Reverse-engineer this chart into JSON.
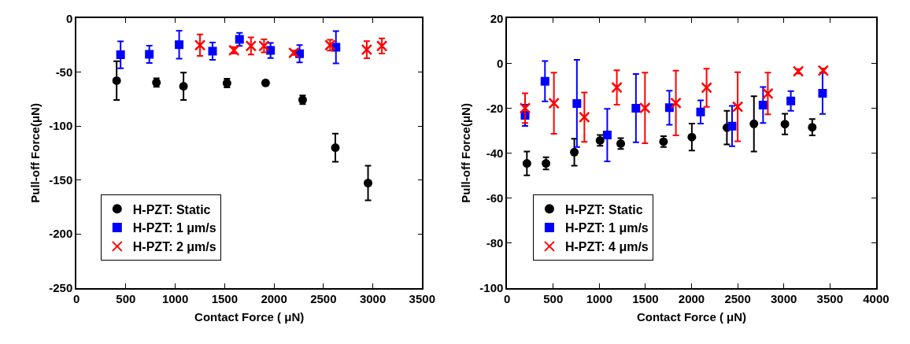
{
  "chart_data": [
    {
      "type": "scatter",
      "xlabel": "Contact Force ( μN)",
      "ylabel": "Pull-off Force(μN)",
      "xlim": [
        0,
        3500
      ],
      "xticks": [
        0,
        500,
        1000,
        1500,
        2000,
        2500,
        3000,
        3500
      ],
      "ylim": [
        -250,
        0
      ],
      "yticks": [
        -250,
        -200,
        -150,
        -100,
        -50,
        0
      ],
      "legend": "bottom left",
      "series": [
        {
          "name": "H-PZT: Static",
          "color": "#000000",
          "marker": "circle",
          "x": [
            407,
            810,
            1084,
            1524,
            1915,
            2290,
            2621,
            2952
          ],
          "values": [
            -57.8,
            -59.6,
            -63,
            -60.1,
            -59.9,
            -75.6,
            -120,
            -152.8
          ],
          "errors": [
            18,
            4,
            12.7,
            4,
            2,
            4,
            13,
            16
          ]
        },
        {
          "name": "H-PZT: 1 μm/s",
          "color": "#0000ff",
          "marker": "square",
          "x": [
            447,
            738,
            1040,
            1378,
            1651,
            1965,
            2259,
            2627
          ],
          "values": [
            -33.8,
            -33.4,
            -24.4,
            -30.5,
            -19.5,
            -29.8,
            -32.9,
            -26.8
          ],
          "errors": [
            12.5,
            8,
            13,
            8,
            6,
            7,
            8,
            15
          ]
        },
        {
          "name": "H-PZT: 2 μm/s",
          "color": "#ff0000",
          "marker": "cross",
          "x": [
            1251,
            1595,
            1767,
            1899,
            2201,
            2568,
            2939,
            3092
          ],
          "values": [
            -24.9,
            -29.6,
            -25.6,
            -25.6,
            -32,
            -24.9,
            -29.1,
            -25.6
          ],
          "errors": [
            10,
            3,
            8,
            6,
            2,
            5,
            8,
            7
          ]
        }
      ]
    },
    {
      "type": "scatter",
      "xlabel": "Contact Force ( μN)",
      "ylabel": "Pull-off Force(μN)",
      "xlim": [
        0,
        4000
      ],
      "xticks": [
        0,
        500,
        1000,
        1500,
        2000,
        2500,
        3000,
        3500,
        4000
      ],
      "ylim": [
        -100,
        20
      ],
      "yticks": [
        -100,
        -80,
        -60,
        -40,
        -20,
        0,
        20
      ],
      "legend": "bottom left",
      "series": [
        {
          "name": "H-PZT: Static",
          "color": "#000000",
          "marker": "circle",
          "x": [
            215,
            422,
            729,
            1008,
            1232,
            1696,
            2003,
            2383,
            2676,
            3012,
            3308
          ],
          "values": [
            -44.6,
            -44.6,
            -39.6,
            -34.4,
            -35.8,
            -34.9,
            -32.9,
            -28.7,
            -27,
            -27.1,
            -28.5
          ],
          "errors": [
            5.3,
            2.7,
            6,
            2.4,
            2.4,
            2.4,
            6,
            7.5,
            12.3,
            4.6,
            3.6
          ]
        },
        {
          "name": "H-PZT: 1 μm/s",
          "color": "#0000ff",
          "marker": "square",
          "x": [
            195,
            411,
            757,
            1086,
            1397,
            1760,
            2098,
            2439,
            2775,
            3076,
            3420
          ],
          "values": [
            -23.2,
            -8,
            -17.9,
            -32,
            -20,
            -19.8,
            -21.7,
            -28,
            -18.6,
            -16.8,
            -13.4
          ],
          "errors": [
            4.7,
            9,
            19.4,
            11.7,
            15.2,
            7.6,
            5.2,
            9,
            8,
            4.4,
            9.2
          ]
        },
        {
          "name": "H-PZT: 4 μm/s",
          "color": "#ff0000",
          "marker": "cross",
          "x": [
            195,
            508,
            838,
            1190,
            1495,
            1830,
            2163,
            2500,
            2827,
            3157,
            3428
          ],
          "values": [
            -20,
            -17.8,
            -24,
            -10.8,
            -19.9,
            -17.7,
            -10.9,
            -19.4,
            -13.5,
            -3.6,
            -3.3
          ],
          "errors": [
            6.6,
            13.6,
            11,
            7.7,
            15.7,
            14.4,
            8.5,
            15.4,
            9.3,
            1,
            1
          ]
        }
      ]
    }
  ]
}
